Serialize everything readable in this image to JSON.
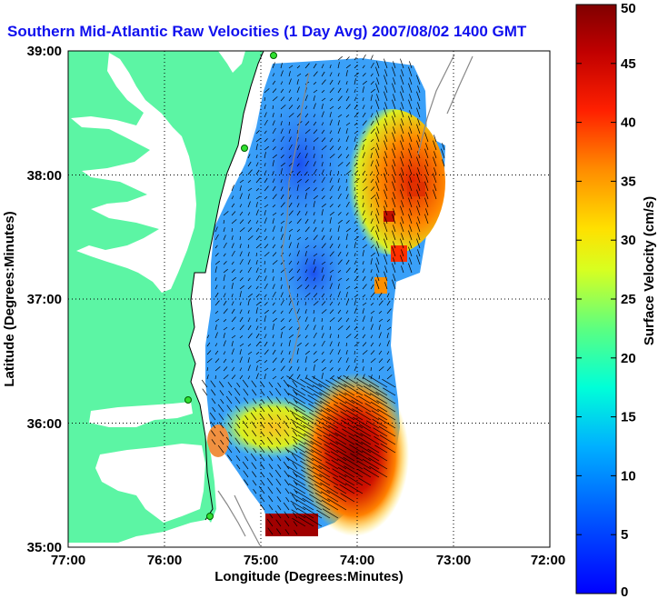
{
  "title": "Southern Mid-Atlantic Raw Velocities (1 Day Avg) 2007/08/02 1400 GMT",
  "xlabel": "Longitude (Degrees:Minutes)",
  "ylabel": "Latitude (Degrees:Minutes)",
  "colorbar_label": "Surface Velocity (cm/s)",
  "x_ticks": [
    "77:00",
    "76:00",
    "75:00",
    "74:00",
    "73:00",
    "72:00"
  ],
  "y_ticks": [
    "39:00",
    "38:00",
    "37:00",
    "36:00",
    "35:00"
  ],
  "colorbar_ticks": [
    "50",
    "45",
    "40",
    "35",
    "30",
    "25",
    "20",
    "15",
    "10",
    "5",
    "0"
  ],
  "colors": {
    "land": "#5cf5a4",
    "title": "#1010ee",
    "vectors": "#000000",
    "bathymetry": "#888888"
  },
  "chart_data": {
    "type": "heatmap",
    "title": "Southern Mid-Atlantic Raw Velocities (1 Day Avg) 2007/08/02 1400 GMT",
    "xlabel": "Longitude (Degrees:Minutes)",
    "ylabel": "Latitude (Degrees:Minutes)",
    "xlim": [
      -77,
      -72
    ],
    "ylim": [
      35,
      39
    ],
    "grid": true,
    "colorbar": {
      "label": "Surface Velocity (cm/s)",
      "range": [
        0,
        50
      ],
      "colormap": "jet"
    },
    "velocity_regions": [
      {
        "lon": -74.8,
        "lat": 38.4,
        "speed_cm_s": 8
      },
      {
        "lon": -74.7,
        "lat": 37.3,
        "speed_cm_s": 10
      },
      {
        "lon": -75.2,
        "lat": 36.3,
        "speed_cm_s": 12
      },
      {
        "lon": -73.6,
        "lat": 37.7,
        "speed_cm_s": 35
      },
      {
        "lon": -73.9,
        "lat": 35.8,
        "speed_cm_s": 48
      }
    ]
  }
}
